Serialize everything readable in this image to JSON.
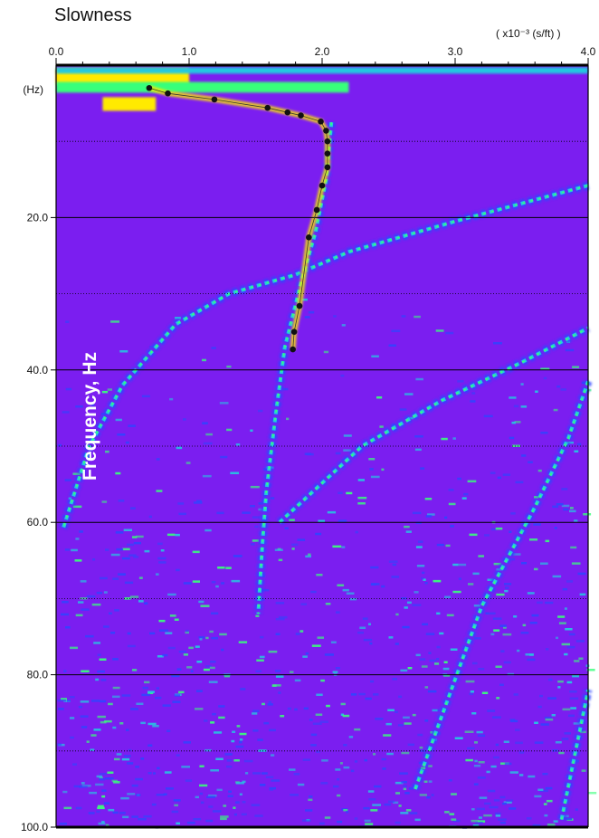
{
  "chart_data": {
    "type": "heatmap",
    "title": "Slowness",
    "x_units": "( x10⁻³ (s/ft) )",
    "ylabel": "Frequency, Hz",
    "y_unit_tick": "(Hz)",
    "xlim": [
      0,
      4
    ],
    "ylim": [
      0,
      100
    ],
    "y_inverted": true,
    "x_ticks": [
      "0.0",
      "1.0",
      "2.0",
      "3.0",
      "4.0"
    ],
    "y_ticks": [
      "20.0",
      "40.0",
      "60.0",
      "80.0",
      "100.0"
    ],
    "grid": "solid horizontal lines at major ticks, dotted at minor ticks",
    "colors": {
      "background": "#7b1ef0",
      "low": "#2f45ff",
      "mid": "#24c9e0",
      "high": "#39ff7a",
      "peak": "#ffea00",
      "max": "#ff6a00",
      "picks": "#111111"
    },
    "picks": [
      {
        "x": 0.7,
        "y": 3.0
      },
      {
        "x": 0.84,
        "y": 3.7
      },
      {
        "x": 1.19,
        "y": 4.5
      },
      {
        "x": 1.59,
        "y": 5.6
      },
      {
        "x": 1.74,
        "y": 6.2
      },
      {
        "x": 1.84,
        "y": 6.6
      },
      {
        "x": 1.99,
        "y": 7.4
      },
      {
        "x": 2.03,
        "y": 8.6
      },
      {
        "x": 2.04,
        "y": 10.0
      },
      {
        "x": 2.04,
        "y": 11.6
      },
      {
        "x": 2.04,
        "y": 13.4
      },
      {
        "x": 2.0,
        "y": 15.8
      },
      {
        "x": 1.96,
        "y": 19.0
      },
      {
        "x": 1.9,
        "y": 22.6
      },
      {
        "x": 1.83,
        "y": 31.6
      },
      {
        "x": 1.79,
        "y": 35.0
      },
      {
        "x": 1.78,
        "y": 37.3
      }
    ],
    "modes": [
      {
        "points": [
          [
            4.0,
            15.8
          ],
          [
            3.0,
            20.5
          ],
          [
            2.2,
            24.5
          ],
          [
            1.8,
            27.5
          ],
          [
            1.3,
            30.0
          ],
          [
            0.9,
            34.0
          ],
          [
            0.5,
            42.0
          ],
          [
            0.25,
            50.0
          ],
          [
            0.05,
            61.0
          ]
        ]
      },
      {
        "points": [
          [
            2.07,
            7.5
          ],
          [
            2.03,
            15.0
          ],
          [
            1.95,
            22.0
          ],
          [
            1.85,
            28.0
          ],
          [
            1.72,
            37.0
          ],
          [
            1.65,
            46.0
          ],
          [
            1.58,
            56.0
          ],
          [
            1.55,
            63.0
          ],
          [
            1.52,
            72.0
          ]
        ]
      },
      {
        "points": [
          [
            1.68,
            60.0
          ],
          [
            2.3,
            50.0
          ],
          [
            2.9,
            44.0
          ],
          [
            3.5,
            39.0
          ],
          [
            4.0,
            34.5
          ]
        ]
      },
      {
        "points": [
          [
            2.7,
            95.0
          ],
          [
            3.2,
            71.0
          ],
          [
            3.6,
            58.0
          ],
          [
            3.85,
            49.0
          ],
          [
            4.0,
            41.5
          ]
        ]
      },
      {
        "points": [
          [
            3.8,
            99.0
          ],
          [
            4.0,
            82.0
          ]
        ]
      }
    ]
  }
}
